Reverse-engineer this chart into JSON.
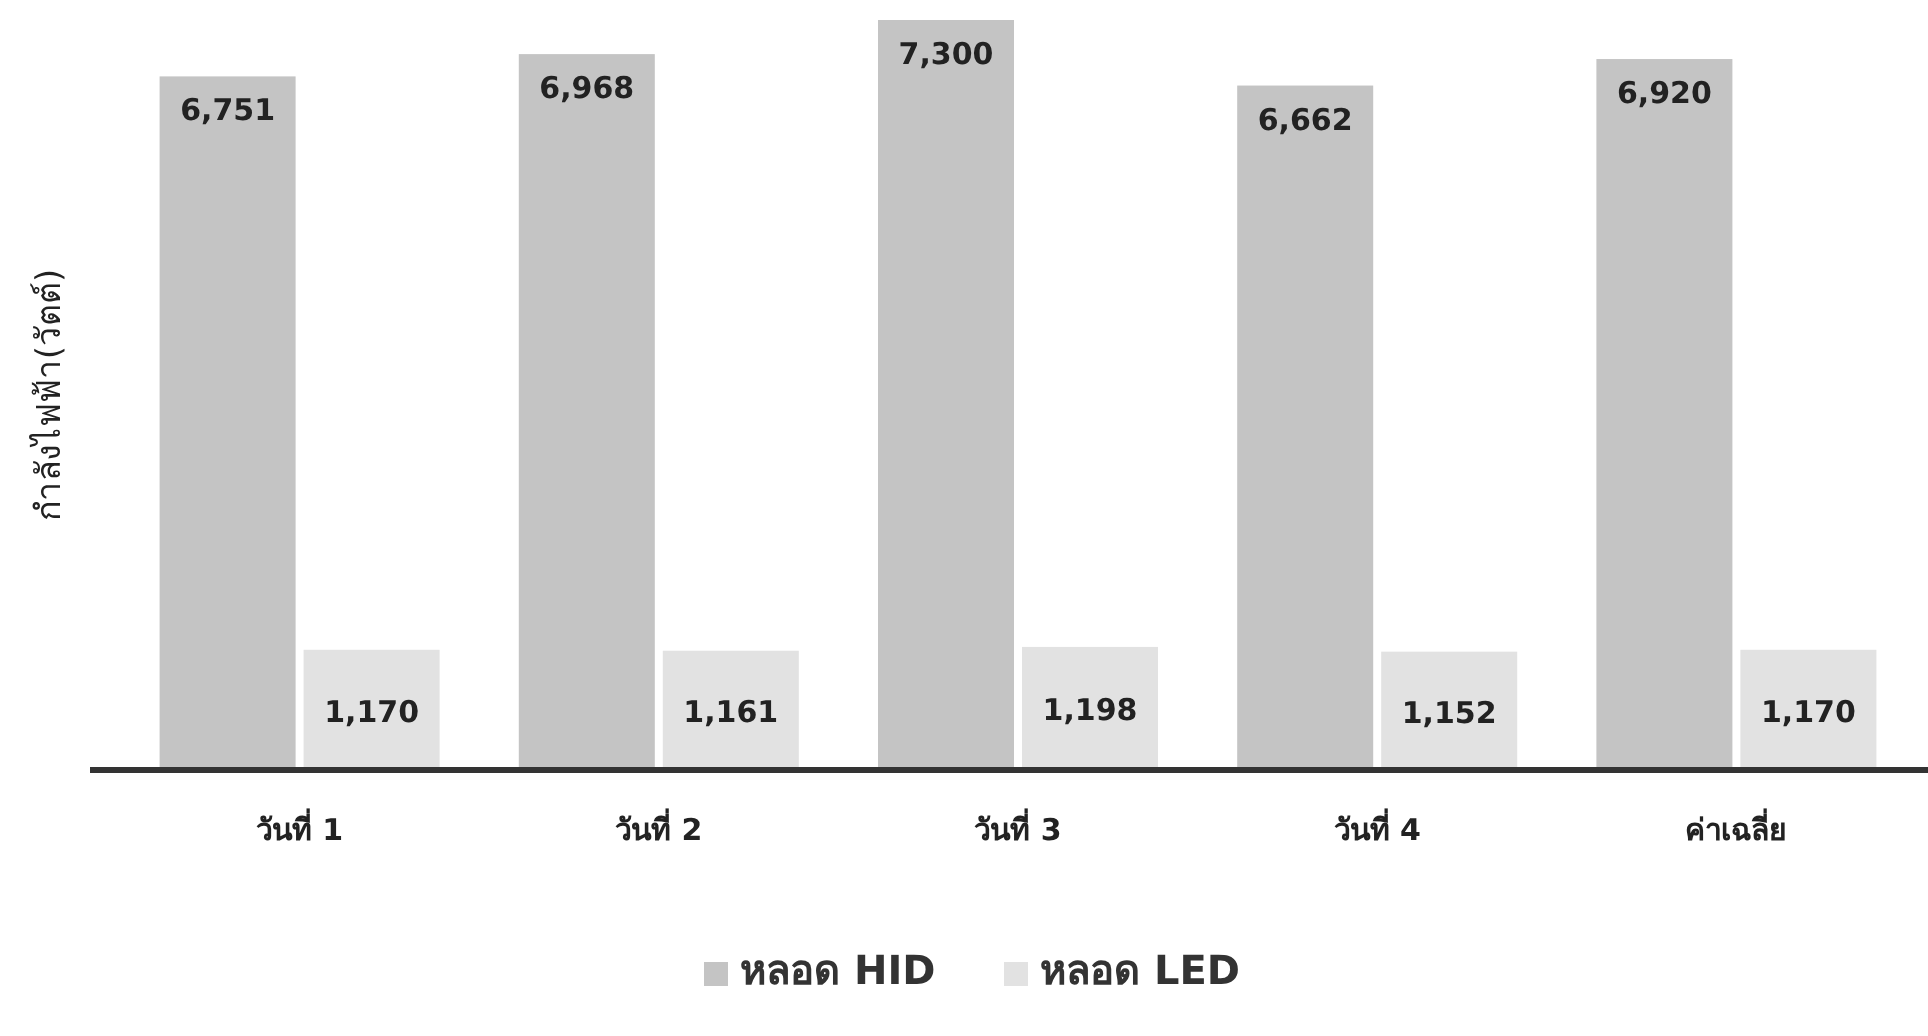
{
  "chart_data": {
    "type": "bar",
    "ylabel": "กำลังไฟฟ้า(วัตต์)",
    "categories": [
      "วันที่ 1",
      "วันที่ 2",
      "วันที่ 3",
      "วันที่ 4",
      "ค่าเฉลี่ย"
    ],
    "series": [
      {
        "name": "หลอด HID",
        "color": "#c4c4c4",
        "values": [
          6751,
          6968,
          7300,
          6662,
          6920
        ],
        "value_labels": [
          "6,751",
          "6,968",
          "7,300",
          "6,662",
          "6,920"
        ]
      },
      {
        "name": "หลอด LED",
        "color": "#e2e2e2",
        "values": [
          1170,
          1161,
          1198,
          1152,
          1170
        ],
        "value_labels": [
          "1,170",
          "1,161",
          "1,198",
          "1,152",
          "1,170"
        ]
      }
    ],
    "tick_labels": "x",
    "grid": false,
    "legend": "bottom"
  }
}
